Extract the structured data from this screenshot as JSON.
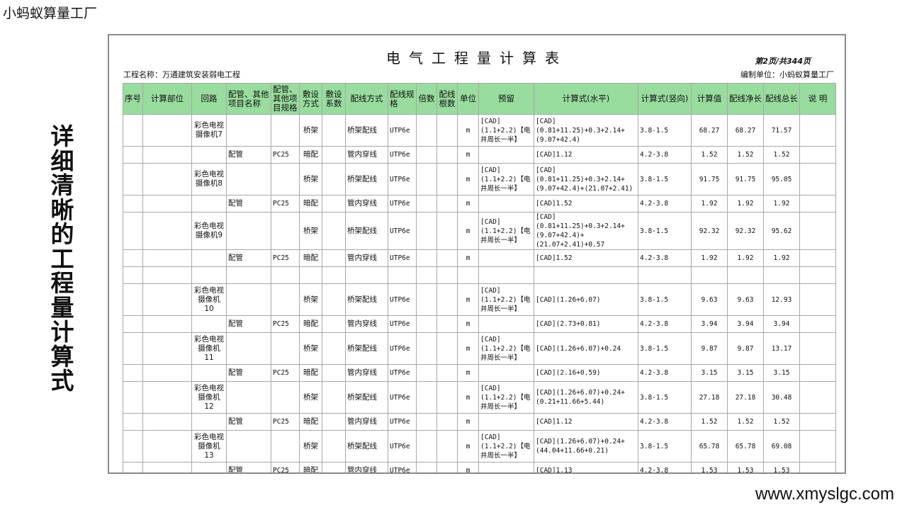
{
  "brand": "小蚂蚁算量工厂",
  "side_title": "详细清晰的工程量计算式",
  "website": "www.xmyslgc.com",
  "doc": {
    "title": "电气工程量计算表",
    "page": "第2页/共344页",
    "project": "工程名称：万通建筑安装弱电工程",
    "unit": "编制单位：小蚂蚁算量工厂"
  },
  "columns": [
    "序号",
    "计算部位",
    "回路",
    "配管、其他项目名称",
    "配管、其他项目规格",
    "敷设方式",
    "敷设系数",
    "配线方式",
    "配线规格",
    "倍数",
    "配线根数",
    "单位",
    "预留",
    "计算式(水平)",
    "计算式(竖向)",
    "计算值",
    "配线净长",
    "配线总长",
    "说 明"
  ],
  "rows": [
    [
      "",
      "",
      "彩色电视摄像机7",
      "",
      "",
      "桥架",
      "",
      "桥架配线",
      "UTP6e",
      "",
      "",
      "m",
      "[CAD](1.1+2.2)【电井周长一半】",
      "[CAD](0.81+11.25)+0.3+2.14+(9.07+42.4)",
      "3.8-1.5",
      "68.27",
      "68.27",
      "71.57",
      ""
    ],
    [
      "",
      "",
      "",
      "配管",
      "PC25",
      "暗配",
      "",
      "管内穿线",
      "UTP6e",
      "",
      "",
      "m",
      "",
      "[CAD]1.12",
      "4.2-3.8",
      "1.52",
      "1.52",
      "1.52",
      ""
    ],
    [
      "",
      "",
      "彩色电视摄像机8",
      "",
      "",
      "桥架",
      "",
      "桥架配线",
      "UTP6e",
      "",
      "",
      "m",
      "[CAD](1.1+2.2)【电井周长一半】",
      "[CAD](0.81+11.25)+0.3+2.14+(9.07+42.4)+(21.07+2.41)",
      "3.8-1.5",
      "91.75",
      "91.75",
      "95.05",
      ""
    ],
    [
      "",
      "",
      "",
      "配管",
      "PC25",
      "暗配",
      "",
      "管内穿线",
      "UTP6e",
      "",
      "",
      "m",
      "",
      "[CAD]1.52",
      "4.2-3.8",
      "1.92",
      "1.92",
      "1.92",
      ""
    ],
    [
      "",
      "",
      "彩色电视摄像机9",
      "",
      "",
      "桥架",
      "",
      "桥架配线",
      "UTP6e",
      "",
      "",
      "m",
      "[CAD](1.1+2.2)【电井周长一半】",
      "[CAD](0.81+11.25)+0.3+2.14+(9.07+42.4)+(21.07+2.41)+0.57",
      "3.8-1.5",
      "92.32",
      "92.32",
      "95.62",
      ""
    ],
    [
      "",
      "",
      "",
      "配管",
      "PC25",
      "暗配",
      "",
      "管内穿线",
      "UTP6e",
      "",
      "",
      "m",
      "",
      "[CAD]1.52",
      "4.2-3.8",
      "1.92",
      "1.92",
      "1.92",
      ""
    ],
    [
      "",
      "",
      "",
      "",
      "",
      "",
      "",
      "",
      "",
      "",
      "",
      "",
      "",
      "",
      "",
      "",
      "",
      "",
      ""
    ],
    [
      "",
      "",
      "彩色电视摄像机10",
      "",
      "",
      "桥架",
      "",
      "桥架配线",
      "UTP6e",
      "",
      "",
      "m",
      "[CAD](1.1+2.2)【电井周长一半】",
      "[CAD](1.26+6.07)",
      "3.8-1.5",
      "9.63",
      "9.63",
      "12.93",
      ""
    ],
    [
      "",
      "",
      "",
      "配管",
      "PC25",
      "暗配",
      "",
      "管内穿线",
      "UTP6e",
      "",
      "",
      "m",
      "",
      "[CAD](2.73+0.81)",
      "4.2-3.8",
      "3.94",
      "3.94",
      "3.94",
      ""
    ],
    [
      "",
      "",
      "彩色电视摄像机11",
      "",
      "",
      "桥架",
      "",
      "桥架配线",
      "UTP6e",
      "",
      "",
      "m",
      "[CAD](1.1+2.2)【电井周长一半】",
      "[CAD](1.26+6.07)+0.24",
      "3.8-1.5",
      "9.87",
      "9.87",
      "13.17",
      ""
    ],
    [
      "",
      "",
      "",
      "配管",
      "PC25",
      "暗配",
      "",
      "管内穿线",
      "UTP6e",
      "",
      "",
      "m",
      "",
      "[CAD](2.16+0.59)",
      "4.2-3.8",
      "3.15",
      "3.15",
      "3.15",
      ""
    ],
    [
      "",
      "",
      "彩色电视摄像机12",
      "",
      "",
      "桥架",
      "",
      "桥架配线",
      "UTP6e",
      "",
      "",
      "m",
      "[CAD](1.1+2.2)【电井周长一半】",
      "[CAD](1.26+6.07)+0.24+(0.21+11.66+5.44)",
      "3.8-1.5",
      "27.18",
      "27.18",
      "30.48",
      ""
    ],
    [
      "",
      "",
      "",
      "配管",
      "PC25",
      "暗配",
      "",
      "管内穿线",
      "UTP6e",
      "",
      "",
      "m",
      "",
      "[CAD]1.12",
      "4.2-3.8",
      "1.52",
      "1.52",
      "1.52",
      ""
    ],
    [
      "",
      "",
      "彩色电视摄像机13",
      "",
      "",
      "桥架",
      "",
      "桥架配线",
      "UTP6e",
      "",
      "",
      "m",
      "[CAD](1.1+2.2)【电井周长一半】",
      "[CAD](1.26+6.07)+0.24+(44.04+11.66+0.21)",
      "3.8-1.5",
      "65.78",
      "65.78",
      "69.08",
      ""
    ],
    [
      "",
      "",
      "",
      "配管",
      "PC25",
      "暗配",
      "",
      "管内穿线",
      "UTP6e",
      "",
      "",
      "m",
      "",
      "[CAD]1.13",
      "4.2-3.8",
      "1.53",
      "1.53",
      "1.53",
      ""
    ]
  ],
  "colors": {
    "header_bg": "#98dc9e",
    "frame": "#8a8a8a"
  }
}
